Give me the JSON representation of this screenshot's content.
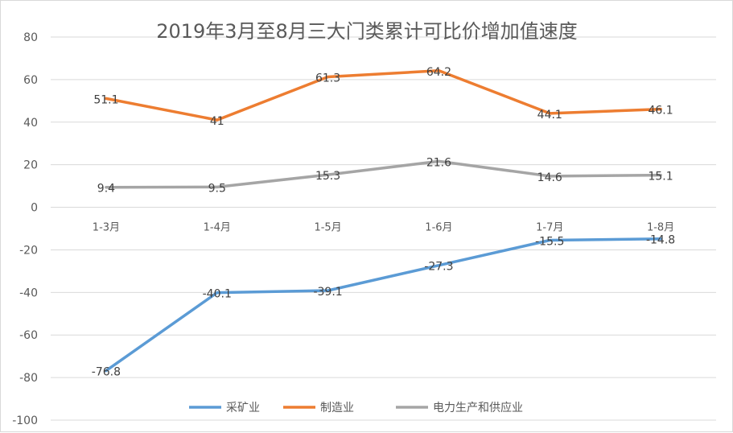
{
  "chart_data": {
    "type": "line",
    "title": "2019年3月至8月三大门类累计可比价增加值速度",
    "categories": [
      "1-3月",
      "1-4月",
      "1-5月",
      "1-6月",
      "1-7月",
      "1-8月"
    ],
    "ylim": [
      -100,
      80
    ],
    "yticks": [
      -100,
      -80,
      -60,
      -40,
      -20,
      0,
      20,
      40,
      60,
      80
    ],
    "grid": true,
    "legend_position": "bottom",
    "series": [
      {
        "name": "采矿业",
        "color": "#5b9bd5",
        "values": [
          -76.8,
          -40.1,
          -39.1,
          -27.3,
          -15.5,
          -14.8
        ],
        "labels": [
          "-76.8",
          "-40.1",
          "-39.1",
          "-27.3",
          "-15.5",
          "-14.8"
        ]
      },
      {
        "name": "制造业",
        "color": "#ed7d31",
        "values": [
          51.1,
          41,
          61.3,
          64.2,
          44.1,
          46.1
        ],
        "labels": [
          "51.1",
          "41",
          "61.3",
          "64.2",
          "44.1",
          "46.1"
        ]
      },
      {
        "name": "电力生产和供应业",
        "color": "#a5a5a5",
        "values": [
          9.4,
          9.5,
          15.3,
          21.6,
          14.6,
          15.1
        ],
        "labels": [
          "9.4",
          "9.5",
          "15.3",
          "21.6",
          "14.6",
          "15.1"
        ]
      }
    ]
  }
}
